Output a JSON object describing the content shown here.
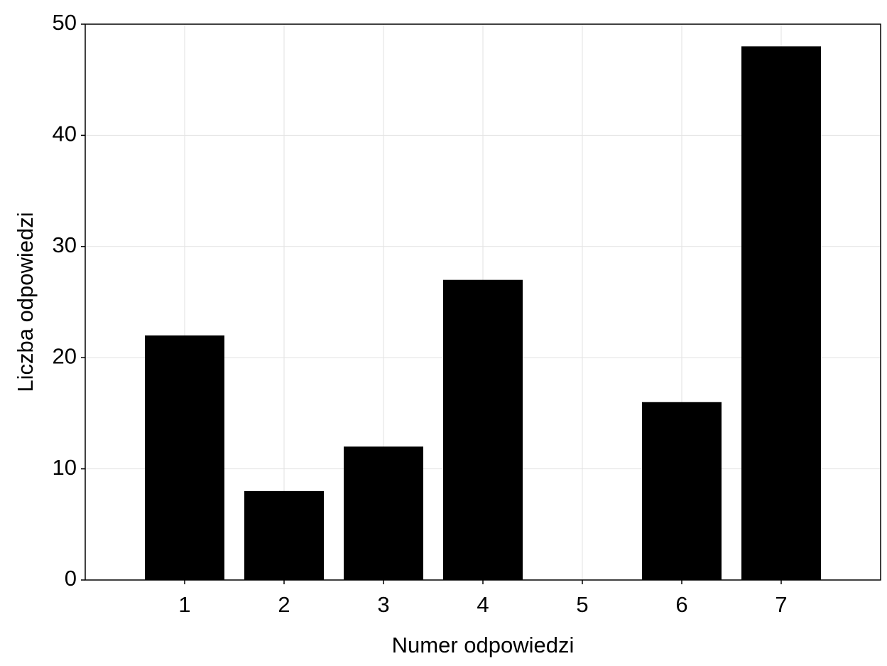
{
  "chart_data": {
    "type": "bar",
    "x_label": "Numer odpowiedzi",
    "y_label": "Liczba odpowiedzi",
    "x": [
      1,
      2,
      3,
      4,
      5,
      6,
      7
    ],
    "values": [
      22,
      8,
      12,
      27,
      0,
      16,
      48
    ],
    "color": "#000000",
    "xlim": [
      0,
      8
    ],
    "xticks": [
      1,
      2,
      3,
      4,
      5,
      6,
      7
    ],
    "ylim": [
      0,
      50
    ],
    "yticks": [
      0,
      10,
      20,
      30,
      40,
      50
    ],
    "grid": true
  }
}
